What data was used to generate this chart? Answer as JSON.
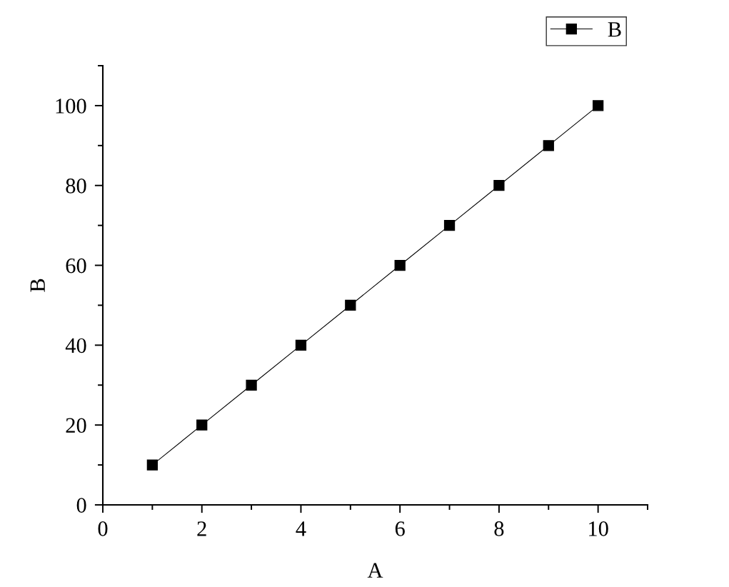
{
  "chart_data": {
    "type": "line",
    "xlabel": "A",
    "ylabel": "B",
    "x": [
      1,
      2,
      3,
      4,
      5,
      6,
      7,
      8,
      9,
      10
    ],
    "series": [
      {
        "name": "B",
        "color": "#000000",
        "values": [
          10,
          20,
          30,
          40,
          50,
          60,
          70,
          80,
          90,
          100
        ]
      }
    ],
    "xlim": [
      0,
      11
    ],
    "ylim": [
      0,
      110
    ],
    "xticks": [
      0,
      {
        "value": 1,
        "label": null
      },
      2,
      {
        "value": 3,
        "label": null
      },
      4,
      {
        "value": 5,
        "label": null
      },
      6,
      {
        "value": 7,
        "label": null
      },
      8,
      {
        "value": 9,
        "label": null
      },
      10,
      {
        "value": 11,
        "label": null
      }
    ],
    "yticks": [
      0,
      {
        "value": 10,
        "label": null
      },
      20,
      {
        "value": 30,
        "label": null
      },
      40,
      {
        "value": 50,
        "label": null
      },
      60,
      {
        "value": 70,
        "label": null
      },
      80,
      {
        "value": 90,
        "label": null
      },
      100,
      {
        "value": 110,
        "label": null
      }
    ],
    "grid": false,
    "legend": "top right",
    "marker": "square",
    "line_style": "solid"
  }
}
